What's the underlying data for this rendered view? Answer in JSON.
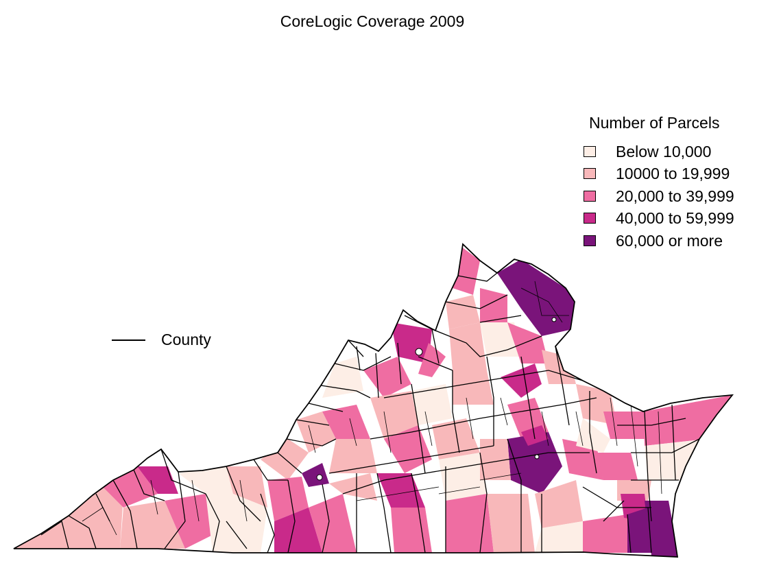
{
  "title": "CoreLogic Coverage 2009",
  "legend": {
    "title": "Number of Parcels",
    "items": [
      {
        "label": "Below 10,000",
        "color": "#fdeee6"
      },
      {
        "label": "10000 to 19,999",
        "color": "#f8b8ba"
      },
      {
        "label": "20,000 to 39,999",
        "color": "#ef6da2"
      },
      {
        "label": "40,000 to 59,999",
        "color": "#c92a8a"
      },
      {
        "label": "60,000 or more",
        "color": "#7a147a"
      }
    ]
  },
  "boundary_key": {
    "label": "County"
  }
}
